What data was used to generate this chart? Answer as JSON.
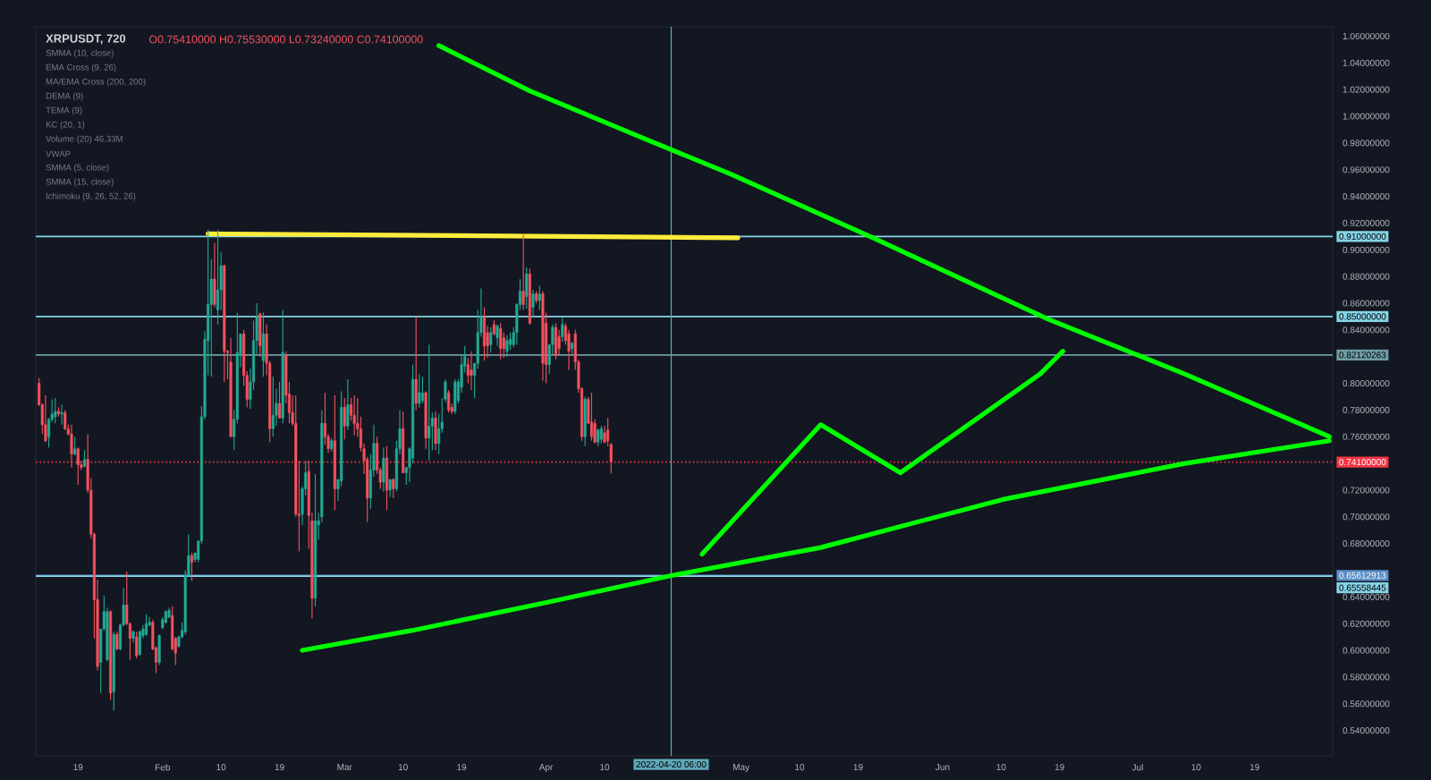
{
  "chart_data": {
    "type": "candlestick",
    "title": "XRPUSDT, 720",
    "subtitle": "O0.75410000 H0.75530000 L0.73240000 C0.74100000",
    "annotations": [
      "SMMA (10, close)",
      "EMA Cross (9, 26)",
      "MA/EMA Cross (200, 200)",
      "DEMA (9)",
      "TEMA (9)",
      "KC (20, 1)",
      "Volume (20)  46.33M",
      "VWAP",
      "SMMA (5, close)",
      "SMMA (15, close)",
      "Ichimoku (9, 26, 52, 26)"
    ],
    "x": [
      "2022-01-13T00:00",
      "2022-01-13T12:00",
      "2022-01-14T00:00",
      "2022-01-14T12:00",
      "2022-01-15T00:00",
      "2022-01-15T12:00",
      "2022-01-16T00:00",
      "2022-01-16T12:00",
      "2022-01-17T00:00",
      "2022-01-17T12:00",
      "2022-01-18T00:00",
      "2022-01-18T12:00",
      "2022-01-19T00:00",
      "2022-01-19T12:00",
      "2022-01-20T00:00",
      "2022-01-20T12:00",
      "2022-01-21T00:00",
      "2022-01-21T12:00",
      "2022-01-22T00:00",
      "2022-01-22T12:00",
      "2022-01-23T00:00",
      "2022-01-23T12:00",
      "2022-01-24T00:00",
      "2022-01-24T12:00",
      "2022-01-25T00:00",
      "2022-01-25T12:00",
      "2022-01-26T00:00",
      "2022-01-26T12:00",
      "2022-01-27T00:00",
      "2022-01-27T12:00",
      "2022-01-28T00:00",
      "2022-01-28T12:00",
      "2022-01-29T00:00",
      "2022-01-29T12:00",
      "2022-01-30T00:00",
      "2022-01-30T12:00",
      "2022-01-31T00:00",
      "2022-01-31T12:00",
      "2022-02-01T00:00",
      "2022-02-01T12:00",
      "2022-02-02T00:00",
      "2022-02-02T12:00",
      "2022-02-03T00:00",
      "2022-02-03T12:00",
      "2022-02-04T00:00",
      "2022-02-04T12:00",
      "2022-02-05T00:00",
      "2022-02-05T12:00",
      "2022-02-06T00:00",
      "2022-02-06T12:00",
      "2022-02-07T00:00",
      "2022-02-07T12:00",
      "2022-02-08T00:00",
      "2022-02-08T12:00",
      "2022-02-09T00:00",
      "2022-02-09T12:00",
      "2022-02-10T00:00",
      "2022-02-10T12:00",
      "2022-02-11T00:00",
      "2022-02-11T12:00",
      "2022-02-12T00:00",
      "2022-02-12T12:00",
      "2022-02-13T00:00",
      "2022-02-13T12:00",
      "2022-02-14T00:00",
      "2022-02-14T12:00",
      "2022-02-15T00:00",
      "2022-02-15T12:00",
      "2022-02-16T00:00",
      "2022-02-16T12:00",
      "2022-02-17T00:00",
      "2022-02-17T12:00",
      "2022-02-18T00:00",
      "2022-02-18T12:00",
      "2022-02-19T00:00",
      "2022-02-19T12:00",
      "2022-02-20T00:00",
      "2022-02-20T12:00",
      "2022-02-21T00:00",
      "2022-02-21T12:00",
      "2022-02-22T00:00",
      "2022-02-22T12:00",
      "2022-02-23T00:00",
      "2022-02-23T12:00",
      "2022-02-24T00:00",
      "2022-02-24T12:00",
      "2022-02-25T00:00",
      "2022-02-25T12:00",
      "2022-02-26T00:00",
      "2022-02-26T12:00",
      "2022-02-27T00:00",
      "2022-02-27T12:00",
      "2022-02-28T00:00",
      "2022-02-28T12:00",
      "2022-03-01T00:00",
      "2022-03-01T12:00",
      "2022-03-02T00:00",
      "2022-03-02T12:00",
      "2022-03-03T00:00",
      "2022-03-03T12:00",
      "2022-03-04T00:00",
      "2022-03-04T12:00",
      "2022-03-05T00:00",
      "2022-03-05T12:00",
      "2022-03-06T00:00",
      "2022-03-06T12:00",
      "2022-03-07T00:00",
      "2022-03-07T12:00",
      "2022-03-08T00:00",
      "2022-03-08T12:00",
      "2022-03-09T00:00",
      "2022-03-09T12:00",
      "2022-03-10T00:00",
      "2022-03-10T12:00",
      "2022-03-11T00:00",
      "2022-03-11T12:00",
      "2022-03-12T00:00",
      "2022-03-12T12:00",
      "2022-03-13T00:00",
      "2022-03-13T12:00",
      "2022-03-14T00:00",
      "2022-03-14T12:00",
      "2022-03-15T00:00",
      "2022-03-15T12:00",
      "2022-03-16T00:00",
      "2022-03-16T12:00",
      "2022-03-17T00:00",
      "2022-03-17T12:00",
      "2022-03-18T00:00",
      "2022-03-18T12:00",
      "2022-03-19T00:00",
      "2022-03-19T12:00",
      "2022-03-20T00:00",
      "2022-03-20T12:00",
      "2022-03-21T00:00",
      "2022-03-21T12:00",
      "2022-03-22T00:00",
      "2022-03-22T12:00",
      "2022-03-23T00:00",
      "2022-03-23T12:00",
      "2022-03-24T00:00",
      "2022-03-24T12:00",
      "2022-03-25T00:00",
      "2022-03-25T12:00",
      "2022-03-26T00:00",
      "2022-03-26T12:00",
      "2022-03-27T00:00",
      "2022-03-27T12:00",
      "2022-03-28T00:00",
      "2022-03-28T12:00",
      "2022-03-29T00:00",
      "2022-03-29T12:00",
      "2022-03-30T00:00",
      "2022-03-30T12:00",
      "2022-03-31T00:00",
      "2022-03-31T12:00",
      "2022-04-01T00:00",
      "2022-04-01T12:00",
      "2022-04-02T00:00",
      "2022-04-02T12:00",
      "2022-04-03T00:00",
      "2022-04-03T12:00",
      "2022-04-04T00:00",
      "2022-04-04T12:00",
      "2022-04-05T00:00",
      "2022-04-05T12:00",
      "2022-04-06T00:00",
      "2022-04-06T12:00",
      "2022-04-07T00:00",
      "2022-04-07T12:00",
      "2022-04-08T00:00",
      "2022-04-08T12:00",
      "2022-04-09T00:00",
      "2022-04-09T12:00",
      "2022-04-10T00:00",
      "2022-04-10T12:00",
      "2022-04-11T00:00"
    ],
    "ohlc": [
      [
        0.8,
        0.804,
        0.783,
        0.784
      ],
      [
        0.784,
        0.785,
        0.762,
        0.769
      ],
      [
        0.769,
        0.791,
        0.756,
        0.757
      ],
      [
        0.76,
        0.774,
        0.752,
        0.773
      ],
      [
        0.773,
        0.788,
        0.771,
        0.777
      ],
      [
        0.775,
        0.789,
        0.77,
        0.779
      ],
      [
        0.779,
        0.782,
        0.775,
        0.777
      ],
      [
        0.777,
        0.784,
        0.769,
        0.778
      ],
      [
        0.778,
        0.78,
        0.765,
        0.766
      ],
      [
        0.766,
        0.769,
        0.761,
        0.762
      ],
      [
        0.762,
        0.769,
        0.737,
        0.747
      ],
      [
        0.747,
        0.76,
        0.746,
        0.751
      ],
      [
        0.751,
        0.752,
        0.724,
        0.739
      ],
      [
        0.739,
        0.742,
        0.735,
        0.737
      ],
      [
        0.738,
        0.75,
        0.737,
        0.743
      ],
      [
        0.743,
        0.762,
        0.718,
        0.72
      ],
      [
        0.72,
        0.729,
        0.684,
        0.687
      ],
      [
        0.687,
        0.688,
        0.609,
        0.638
      ],
      [
        0.638,
        0.653,
        0.585,
        0.588
      ],
      [
        0.591,
        0.616,
        0.568,
        0.616
      ],
      [
        0.616,
        0.641,
        0.615,
        0.629
      ],
      [
        0.593,
        0.632,
        0.592,
        0.629
      ],
      [
        0.629,
        0.63,
        0.563,
        0.568
      ],
      [
        0.569,
        0.614,
        0.555,
        0.612
      ],
      [
        0.612,
        0.614,
        0.6,
        0.601
      ],
      [
        0.601,
        0.62,
        0.6,
        0.619
      ],
      [
        0.619,
        0.647,
        0.618,
        0.634
      ],
      [
        0.634,
        0.659,
        0.619,
        0.62
      ],
      [
        0.62,
        0.621,
        0.593,
        0.609
      ],
      [
        0.609,
        0.615,
        0.606,
        0.614
      ],
      [
        0.61,
        0.614,
        0.594,
        0.596
      ],
      [
        0.597,
        0.615,
        0.596,
        0.614
      ],
      [
        0.611,
        0.619,
        0.609,
        0.616
      ],
      [
        0.612,
        0.627,
        0.611,
        0.62
      ],
      [
        0.619,
        0.625,
        0.618,
        0.621
      ],
      [
        0.621,
        0.623,
        0.6,
        0.601
      ],
      [
        0.602,
        0.603,
        0.583,
        0.591
      ],
      [
        0.591,
        0.612,
        0.589,
        0.611
      ],
      [
        0.617,
        0.625,
        0.616,
        0.623
      ],
      [
        0.621,
        0.63,
        0.62,
        0.629
      ],
      [
        0.625,
        0.632,
        0.624,
        0.63
      ],
      [
        0.626,
        0.633,
        0.6,
        0.601
      ],
      [
        0.609,
        0.61,
        0.589,
        0.598
      ],
      [
        0.603,
        0.611,
        0.602,
        0.61
      ],
      [
        0.61,
        0.621,
        0.609,
        0.615
      ],
      [
        0.614,
        0.66,
        0.612,
        0.656
      ],
      [
        0.656,
        0.687,
        0.655,
        0.671
      ],
      [
        0.671,
        0.673,
        0.652,
        0.666
      ],
      [
        0.668,
        0.673,
        0.666,
        0.673
      ],
      [
        0.668,
        0.682,
        0.666,
        0.682
      ],
      [
        0.682,
        0.783,
        0.68,
        0.775
      ],
      [
        0.775,
        0.839,
        0.773,
        0.833
      ],
      [
        0.832,
        0.915,
        0.806,
        0.859
      ],
      [
        0.859,
        0.893,
        0.805,
        0.878
      ],
      [
        0.878,
        0.905,
        0.857,
        0.859
      ],
      [
        0.855,
        0.915,
        0.844,
        0.87
      ],
      [
        0.87,
        0.898,
        0.855,
        0.888
      ],
      [
        0.888,
        0.889,
        0.801,
        0.824
      ],
      [
        0.824,
        0.825,
        0.803,
        0.823
      ],
      [
        0.816,
        0.834,
        0.76,
        0.76
      ],
      [
        0.76,
        0.78,
        0.75,
        0.773
      ],
      [
        0.773,
        0.853,
        0.77,
        0.823
      ],
      [
        0.822,
        0.837,
        0.812,
        0.837
      ],
      [
        0.837,
        0.84,
        0.798,
        0.806
      ],
      [
        0.806,
        0.809,
        0.782,
        0.788
      ],
      [
        0.788,
        0.811,
        0.781,
        0.801
      ],
      [
        0.801,
        0.847,
        0.795,
        0.832
      ],
      [
        0.832,
        0.86,
        0.822,
        0.85
      ],
      [
        0.852,
        0.853,
        0.82,
        0.828
      ],
      [
        0.817,
        0.853,
        0.805,
        0.837
      ],
      [
        0.837,
        0.844,
        0.806,
        0.815
      ],
      [
        0.815,
        0.817,
        0.756,
        0.766
      ],
      [
        0.766,
        0.805,
        0.76,
        0.776
      ],
      [
        0.776,
        0.796,
        0.768,
        0.785
      ],
      [
        0.785,
        0.801,
        0.774,
        0.774
      ],
      [
        0.774,
        0.855,
        0.77,
        0.823
      ],
      [
        0.821,
        0.824,
        0.785,
        0.791
      ],
      [
        0.792,
        0.801,
        0.77,
        0.778
      ],
      [
        0.778,
        0.791,
        0.768,
        0.77
      ],
      [
        0.77,
        0.791,
        0.7,
        0.702
      ],
      [
        0.702,
        0.742,
        0.674,
        0.701
      ],
      [
        0.702,
        0.723,
        0.694,
        0.721
      ],
      [
        0.721,
        0.742,
        0.716,
        0.733
      ],
      [
        0.734,
        0.742,
        0.676,
        0.701
      ],
      [
        0.697,
        0.703,
        0.624,
        0.639
      ],
      [
        0.639,
        0.732,
        0.633,
        0.697
      ],
      [
        0.694,
        0.703,
        0.683,
        0.697
      ],
      [
        0.7,
        0.78,
        0.696,
        0.77
      ],
      [
        0.77,
        0.793,
        0.754,
        0.76
      ],
      [
        0.76,
        0.762,
        0.748,
        0.751
      ],
      [
        0.751,
        0.759,
        0.749,
        0.757
      ],
      [
        0.757,
        0.791,
        0.705,
        0.721
      ],
      [
        0.721,
        0.728,
        0.712,
        0.728
      ],
      [
        0.727,
        0.794,
        0.723,
        0.782
      ],
      [
        0.782,
        0.789,
        0.758,
        0.768
      ],
      [
        0.768,
        0.803,
        0.765,
        0.784
      ],
      [
        0.784,
        0.789,
        0.772,
        0.776
      ],
      [
        0.776,
        0.791,
        0.761,
        0.77
      ],
      [
        0.77,
        0.789,
        0.76,
        0.766
      ],
      [
        0.766,
        0.775,
        0.749,
        0.752
      ],
      [
        0.751,
        0.755,
        0.732,
        0.742
      ],
      [
        0.743,
        0.745,
        0.696,
        0.714
      ],
      [
        0.714,
        0.747,
        0.706,
        0.735
      ],
      [
        0.735,
        0.769,
        0.73,
        0.755
      ],
      [
        0.755,
        0.76,
        0.732,
        0.735
      ],
      [
        0.735,
        0.737,
        0.721,
        0.726
      ],
      [
        0.726,
        0.752,
        0.719,
        0.744
      ],
      [
        0.744,
        0.753,
        0.705,
        0.72
      ],
      [
        0.72,
        0.728,
        0.715,
        0.728
      ],
      [
        0.728,
        0.729,
        0.714,
        0.721
      ],
      [
        0.721,
        0.757,
        0.719,
        0.751
      ],
      [
        0.751,
        0.78,
        0.747,
        0.766
      ],
      [
        0.766,
        0.779,
        0.733,
        0.733
      ],
      [
        0.733,
        0.737,
        0.724,
        0.737
      ],
      [
        0.737,
        0.752,
        0.726,
        0.751
      ],
      [
        0.744,
        0.814,
        0.74,
        0.803
      ],
      [
        0.803,
        0.85,
        0.78,
        0.785
      ],
      [
        0.785,
        0.807,
        0.782,
        0.793
      ],
      [
        0.787,
        0.805,
        0.785,
        0.793
      ],
      [
        0.793,
        0.794,
        0.751,
        0.759
      ],
      [
        0.759,
        0.829,
        0.742,
        0.768
      ],
      [
        0.768,
        0.778,
        0.75,
        0.774
      ],
      [
        0.774,
        0.779,
        0.75,
        0.755
      ],
      [
        0.755,
        0.777,
        0.747,
        0.766
      ],
      [
        0.766,
        0.789,
        0.763,
        0.771
      ],
      [
        0.788,
        0.803,
        0.786,
        0.801
      ],
      [
        0.793,
        0.795,
        0.778,
        0.78
      ],
      [
        0.782,
        0.785,
        0.777,
        0.779
      ],
      [
        0.779,
        0.803,
        0.777,
        0.801
      ],
      [
        0.787,
        0.803,
        0.785,
        0.801
      ],
      [
        0.797,
        0.822,
        0.793,
        0.814
      ],
      [
        0.813,
        0.828,
        0.808,
        0.82
      ],
      [
        0.814,
        0.819,
        0.8,
        0.806
      ],
      [
        0.81,
        0.824,
        0.795,
        0.806
      ],
      [
        0.806,
        0.815,
        0.789,
        0.815
      ],
      [
        0.815,
        0.855,
        0.811,
        0.838
      ],
      [
        0.838,
        0.871,
        0.835,
        0.85
      ],
      [
        0.85,
        0.857,
        0.817,
        0.828
      ],
      [
        0.838,
        0.843,
        0.819,
        0.828
      ],
      [
        0.829,
        0.842,
        0.823,
        0.838
      ],
      [
        0.844,
        0.847,
        0.836,
        0.837
      ],
      [
        0.834,
        0.844,
        0.828,
        0.843
      ],
      [
        0.841,
        0.845,
        0.818,
        0.826
      ],
      [
        0.834,
        0.838,
        0.819,
        0.826
      ],
      [
        0.824,
        0.836,
        0.82,
        0.832
      ],
      [
        0.829,
        0.838,
        0.825,
        0.833
      ],
      [
        0.829,
        0.842,
        0.827,
        0.838
      ],
      [
        0.838,
        0.86,
        0.829,
        0.859
      ],
      [
        0.859,
        0.878,
        0.855,
        0.869
      ],
      [
        0.869,
        0.912,
        0.855,
        0.859
      ],
      [
        0.865,
        0.887,
        0.856,
        0.882
      ],
      [
        0.882,
        0.886,
        0.844,
        0.845
      ],
      [
        0.857,
        0.87,
        0.85,
        0.867
      ],
      [
        0.867,
        0.869,
        0.86,
        0.862
      ],
      [
        0.862,
        0.873,
        0.855,
        0.867
      ],
      [
        0.867,
        0.869,
        0.802,
        0.815
      ],
      [
        0.845,
        0.853,
        0.8,
        0.814
      ],
      [
        0.814,
        0.829,
        0.807,
        0.829
      ],
      [
        0.829,
        0.844,
        0.822,
        0.842
      ],
      [
        0.842,
        0.845,
        0.818,
        0.821
      ],
      [
        0.835,
        0.84,
        0.821,
        0.826
      ],
      [
        0.835,
        0.849,
        0.831,
        0.844
      ],
      [
        0.843,
        0.845,
        0.829,
        0.832
      ],
      [
        0.837,
        0.84,
        0.81,
        0.824
      ],
      [
        0.826,
        0.831,
        0.822,
        0.83
      ],
      [
        0.837,
        0.84,
        0.81,
        0.816
      ],
      [
        0.816,
        0.818,
        0.793,
        0.796
      ],
      [
        0.796,
        0.797,
        0.757,
        0.76
      ],
      [
        0.76,
        0.79,
        0.753,
        0.788
      ],
      [
        0.788,
        0.79,
        0.77,
        0.77
      ],
      [
        0.771,
        0.793,
        0.757,
        0.76
      ],
      [
        0.77,
        0.773,
        0.755,
        0.756
      ],
      [
        0.756,
        0.766,
        0.753,
        0.765
      ],
      [
        0.758,
        0.768,
        0.755,
        0.766
      ],
      [
        0.763,
        0.768,
        0.755,
        0.756
      ],
      [
        0.765,
        0.774,
        0.753,
        0.757
      ],
      [
        0.7541,
        0.7553,
        0.7324,
        0.741
      ]
    ],
    "colors": [
      "#f7525f",
      "#f7525f",
      "#f7525f",
      "#22ab94",
      "#22ab94",
      "#22ab94",
      "#f7525f",
      "#22ab94",
      "#f7525f",
      "#f7525f",
      "#f7525f",
      "#22ab94",
      "#f7525f",
      "#f7525f",
      "#22ab94",
      "#f7525f",
      "#f7525f",
      "#f7525f",
      "#f7525f",
      "#22ab94",
      "#22ab94",
      "#22ab94",
      "#f7525f",
      "#22ab94",
      "#f7525f",
      "#22ab94",
      "#22ab94",
      "#f7525f",
      "#f7525f",
      "#22ab94",
      "#f7525f",
      "#22ab94",
      "#22ab94",
      "#22ab94",
      "#22ab94",
      "#f7525f",
      "#f7525f",
      "#22ab94",
      "#22ab94",
      "#22ab94",
      "#22ab94",
      "#f7525f",
      "#f7525f",
      "#22ab94",
      "#22ab94",
      "#22ab94",
      "#22ab94",
      "#f7525f",
      "#22ab94",
      "#22ab94",
      "#22ab94",
      "#22ab94",
      "#22ab94",
      "#22ab94",
      "#f7525f",
      "#22ab94",
      "#22ab94",
      "#f7525f",
      "#f7525f",
      "#f7525f",
      "#22ab94",
      "#22ab94",
      "#22ab94",
      "#f7525f",
      "#f7525f",
      "#22ab94",
      "#22ab94",
      "#22ab94",
      "#f7525f",
      "#22ab94",
      "#f7525f",
      "#f7525f",
      "#22ab94",
      "#22ab94",
      "#f7525f",
      "#22ab94",
      "#f7525f",
      "#f7525f",
      "#f7525f",
      "#f7525f",
      "#f7525f",
      "#22ab94",
      "#22ab94",
      "#f7525f",
      "#f7525f",
      "#22ab94",
      "#22ab94",
      "#22ab94",
      "#f7525f",
      "#f7525f",
      "#22ab94",
      "#f7525f",
      "#22ab94",
      "#22ab94",
      "#f7525f",
      "#22ab94",
      "#f7525f",
      "#f7525f",
      "#f7525f",
      "#f7525f",
      "#f7525f",
      "#f7525f",
      "#22ab94",
      "#22ab94",
      "#f7525f",
      "#f7525f",
      "#22ab94",
      "#f7525f",
      "#22ab94",
      "#f7525f",
      "#22ab94",
      "#22ab94",
      "#f7525f",
      "#22ab94",
      "#22ab94",
      "#22ab94",
      "#f7525f",
      "#22ab94",
      "#22ab94",
      "#f7525f",
      "#22ab94",
      "#22ab94",
      "#f7525f",
      "#22ab94",
      "#22ab94",
      "#22ab94",
      "#f7525f",
      "#f7525f",
      "#22ab94",
      "#22ab94",
      "#22ab94",
      "#22ab94",
      "#f7525f",
      "#f7525f",
      "#22ab94",
      "#22ab94",
      "#22ab94",
      "#f7525f",
      "#f7525f",
      "#22ab94",
      "#f7525f",
      "#22ab94",
      "#f7525f",
      "#f7525f",
      "#22ab94",
      "#22ab94",
      "#22ab94",
      "#22ab94",
      "#22ab94",
      "#f7525f",
      "#22ab94",
      "#f7525f",
      "#22ab94",
      "#f7525f",
      "#22ab94",
      "#f7525f",
      "#f7525f",
      "#22ab94",
      "#22ab94",
      "#f7525f",
      "#f7525f",
      "#22ab94",
      "#f7525f",
      "#f7525f",
      "#22ab94",
      "#f7525f",
      "#f7525f",
      "#f7525f",
      "#22ab94",
      "#f7525f",
      "#f7525f",
      "#f7525f",
      "#22ab94",
      "#22ab94",
      "#f7525f",
      "#f7525f",
      "#f7525f"
    ],
    "series": [
      {
        "type": "line",
        "color": "#00ff00",
        "x": [
          "2022-03-15T12:00",
          "2022-03-29T12:00",
          "2022-04-15T06:00",
          "2022-04-29T06:00",
          "2022-05-21T18:00",
          "2022-06-17T06:00",
          "2022-07-08T06:00",
          "2022-07-30T12:00"
        ],
        "values": [
          1.053,
          1.019,
          0.985,
          0.957,
          0.908,
          0.848,
          0.807,
          0.76
        ]
      },
      {
        "type": "line",
        "color": "#00ff00",
        "x": [
          "2022-02-22T12:00",
          "2022-03-11T12:00",
          "2022-04-01T06:00",
          "2022-04-20T06:00",
          "2022-05-13T06:00",
          "2022-06-10T06:00",
          "2022-07-08T06:00",
          "2022-07-30T12:00"
        ],
        "values": [
          0.6,
          0.615,
          0.636,
          0.656,
          0.677,
          0.713,
          0.74,
          0.757
        ]
      },
      {
        "type": "line",
        "color": "#00ff00",
        "x": [
          "2022-04-25T00:00",
          "2022-05-13T06:00",
          "2022-05-25T12:00",
          "2022-06-16T00:00",
          "2022-06-19T12:00"
        ],
        "values": [
          0.672,
          0.769,
          0.733,
          0.807,
          0.824
        ]
      },
      {
        "type": "line",
        "color": "#ffeb3b",
        "x": [
          "2022-02-08T00:00",
          "2022-04-30T12:00"
        ],
        "values": [
          0.912,
          0.909
        ]
      }
    ],
    "ref_lines": [
      {
        "axis": "y",
        "value": 0.91,
        "label": "0.91000000",
        "color": "#86d3e6"
      },
      {
        "axis": "y",
        "value": 0.85,
        "label": "0.85000000",
        "color": "#86d3e6"
      },
      {
        "axis": "y",
        "value": 0.82120263,
        "label": "0.82120263",
        "color": "#6f9ca6"
      },
      {
        "axis": "y",
        "value": 0.741,
        "label": "0.74100000",
        "color": "#f23645",
        "line_style": "dotted"
      },
      {
        "axis": "y",
        "value": 0.65612913,
        "label": "0.65612913",
        "color": "#5a8fc8"
      },
      {
        "axis": "y",
        "value": 0.65558445,
        "label": "0.65558445",
        "color": "#86d3e6"
      },
      {
        "axis": "x",
        "value": "2022-04-20T06:00",
        "label": "2022-04-20 06:00",
        "color": "#5fa8b8"
      }
    ],
    "xlim": [
      "2022-01-12T12:00",
      "2022-07-31T00:00"
    ],
    "ylim": [
      0.521,
      1.067
    ],
    "xticks": [
      {
        "value": "2022-01-19",
        "label": "19"
      },
      {
        "value": "2022-02-01",
        "label": "Feb"
      },
      {
        "value": "2022-02-10",
        "label": "10"
      },
      {
        "value": "2022-02-19",
        "label": "19"
      },
      {
        "value": "2022-03-01",
        "label": "Mar"
      },
      {
        "value": "2022-03-10",
        "label": "10"
      },
      {
        "value": "2022-03-19",
        "label": "19"
      },
      {
        "value": "2022-04-01",
        "label": "Apr"
      },
      {
        "value": "2022-04-10",
        "label": "10"
      },
      {
        "value": "2022-05-01",
        "label": "May"
      },
      {
        "value": "2022-05-10",
        "label": "10"
      },
      {
        "value": "2022-05-19",
        "label": "19"
      },
      {
        "value": "2022-06-01",
        "label": "Jun"
      },
      {
        "value": "2022-06-10",
        "label": "10"
      },
      {
        "value": "2022-06-19",
        "label": "19"
      },
      {
        "value": "2022-07-01",
        "label": "Jul"
      },
      {
        "value": "2022-07-10",
        "label": "10"
      },
      {
        "value": "2022-07-19",
        "label": "19"
      }
    ],
    "yticks": [
      {
        "value": 0.54,
        "label": "0.54000000"
      },
      {
        "value": 0.56,
        "label": "0.56000000"
      },
      {
        "value": 0.58,
        "label": "0.58000000"
      },
      {
        "value": 0.6,
        "label": "0.60000000"
      },
      {
        "value": 0.62,
        "label": "0.62000000"
      },
      {
        "value": 0.64,
        "label": "0.64000000"
      },
      {
        "value": 0.68,
        "label": "0.68000000"
      },
      {
        "value": 0.7,
        "label": "0.70000000"
      },
      {
        "value": 0.72,
        "label": "0.72000000"
      },
      {
        "value": 0.76,
        "label": "0.76000000"
      },
      {
        "value": 0.78,
        "label": "0.78000000"
      },
      {
        "value": 0.8,
        "label": "0.80000000"
      },
      {
        "value": 0.84,
        "label": "0.84000000"
      },
      {
        "value": 0.86,
        "label": "0.86000000"
      },
      {
        "value": 0.88,
        "label": "0.88000000"
      },
      {
        "value": 0.9,
        "label": "0.90000000"
      },
      {
        "value": 0.92,
        "label": "0.92000000"
      },
      {
        "value": 0.94,
        "label": "0.94000000"
      },
      {
        "value": 0.96,
        "label": "0.96000000"
      },
      {
        "value": 0.98,
        "label": "0.98000000"
      },
      {
        "value": 1.0,
        "label": "1.00000000"
      },
      {
        "value": 1.02,
        "label": "1.02000000"
      },
      {
        "value": 1.04,
        "label": "1.04000000"
      },
      {
        "value": 1.06,
        "label": "1.06000000"
      }
    ]
  }
}
